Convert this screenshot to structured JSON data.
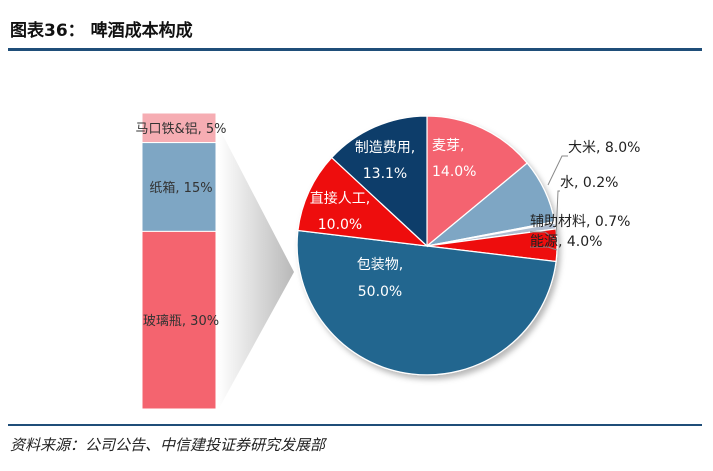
{
  "page": {
    "title": "图表36：   啤酒成本构成",
    "source": "资料来源：公司公告、中信建投证券研究发展部"
  },
  "chart_data": [
    {
      "type": "pie",
      "slices": [
        {
          "label": "麦芽",
          "value": 14.0,
          "value_label": "14.0%",
          "color": "#f4646f"
        },
        {
          "label": "大米",
          "value": 8.0,
          "value_label": "8.0%",
          "color": "#7ea6c4"
        },
        {
          "label": "水",
          "value": 0.2,
          "value_label": "0.2%",
          "color": "#d9d9d9"
        },
        {
          "label": "辅助材料",
          "value": 0.7,
          "value_label": "0.7%",
          "color": "#aebdd0"
        },
        {
          "label": "能源",
          "value": 4.0,
          "value_label": "4.0%",
          "color": "#ee0a0a"
        },
        {
          "label": "包装物",
          "value": 50.0,
          "value_label": "50.0%",
          "color": "#23668f"
        },
        {
          "label": "直接人工",
          "value": 10.0,
          "value_label": "10.0%",
          "color": "#ee0a0a"
        },
        {
          "label": "制造费用",
          "value": 13.1,
          "value_label": "13.1%",
          "color": "#0a3d6b"
        }
      ]
    },
    {
      "type": "bar",
      "stacked": true,
      "parent": "包装物",
      "segments": [
        {
          "label": "马口铁&铝",
          "value": 5,
          "value_label": "5%",
          "color": "#f6adb3"
        },
        {
          "label": "纸箱",
          "value": 15,
          "value_label": "15%",
          "color": "#7ea6c4"
        },
        {
          "label": "玻璃瓶",
          "value": 30,
          "value_label": "30%",
          "color": "#f4646f"
        }
      ]
    }
  ]
}
